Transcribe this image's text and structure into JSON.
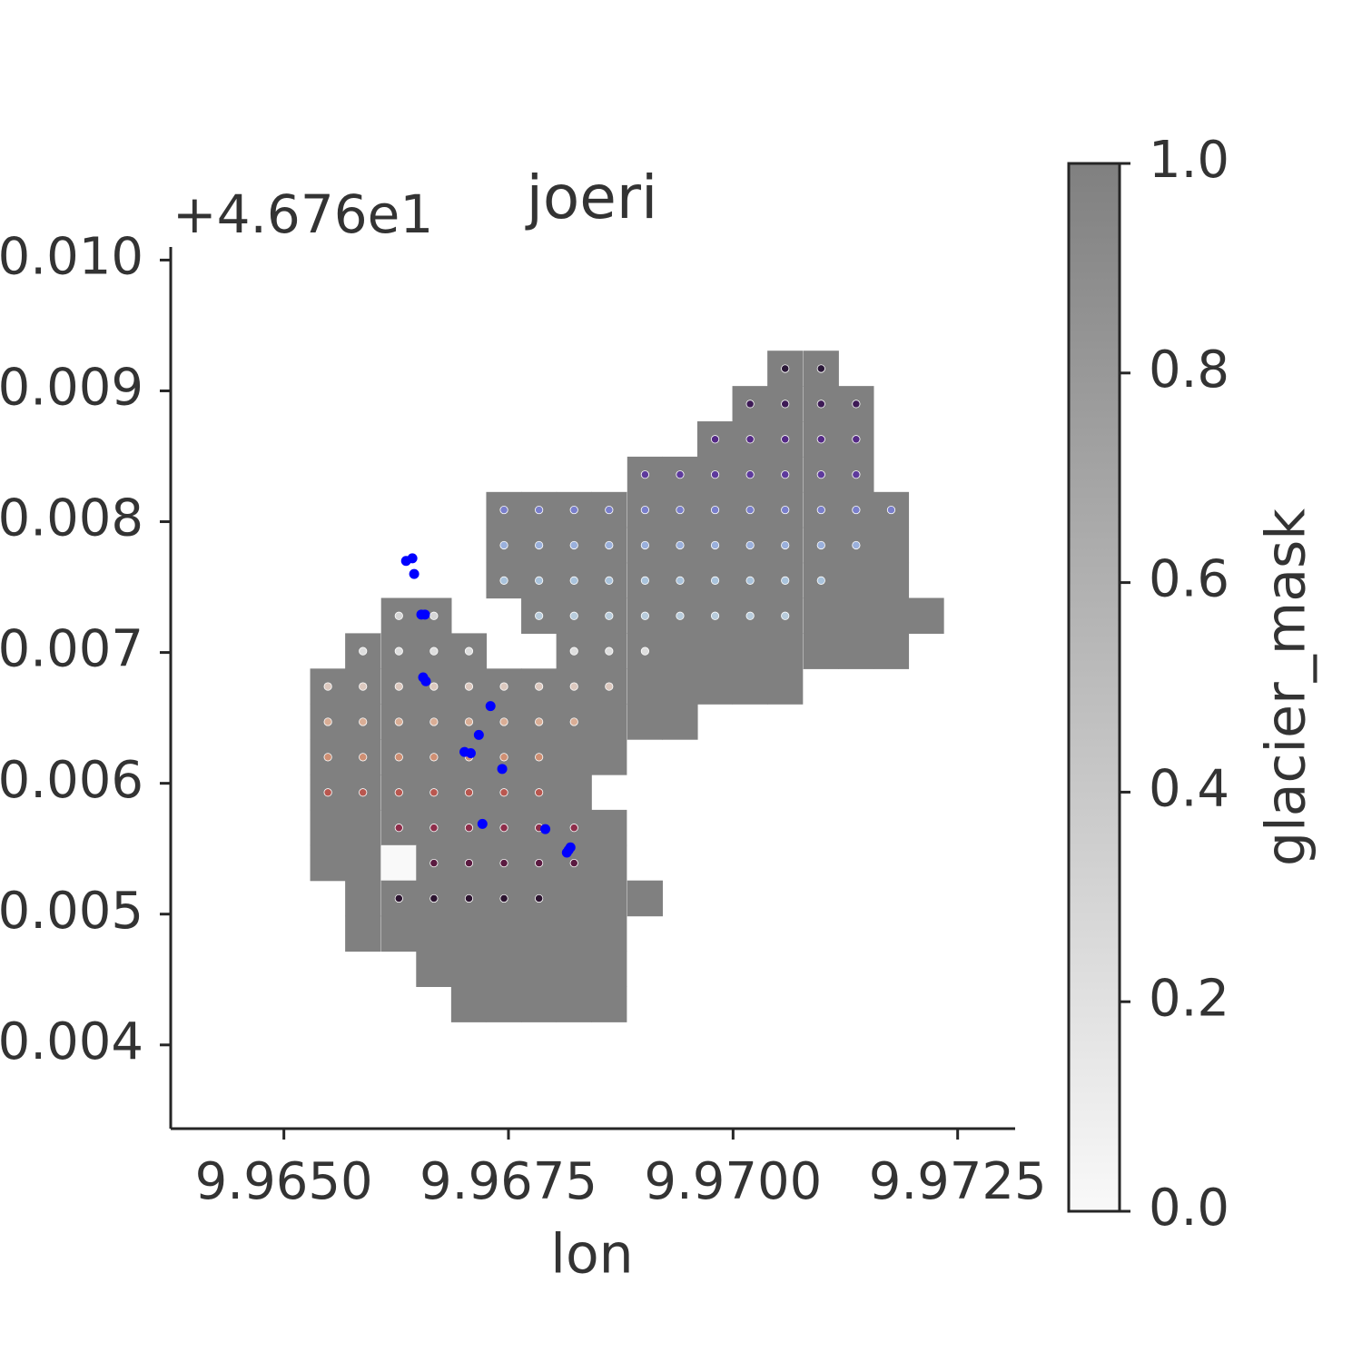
{
  "chart_data": {
    "type": "heatmap",
    "title": "joeri",
    "offset_text": "+4.676e1",
    "xlabel": "lon",
    "xlim": [
      9.96374,
      9.97314
    ],
    "ylim": [
      0.00336,
      0.0101
    ],
    "xticks": [
      {
        "value": 9.965,
        "label": "9.9650"
      },
      9.9675,
      {
        "value": 9.97,
        "label": "9.9700"
      },
      9.9725
    ],
    "yticks": [
      0.004,
      0.005,
      0.006,
      0.007,
      0.008,
      0.009,
      {
        "value": 0.01,
        "label": "0.010"
      }
    ],
    "colorbar": {
      "label": "glacier_mask",
      "lim": [
        0,
        1
      ],
      "ticks": [
        {
          "value": 0,
          "label": "0.0"
        },
        0.2,
        0.4,
        0.6,
        0.8,
        {
          "value": 1,
          "label": "1.0"
        }
      ],
      "colors": [
        "#f9f9f9",
        "#808080"
      ]
    },
    "mask": {
      "lon": [
        9.96549,
        9.96588,
        9.96628,
        9.96667,
        9.96706,
        9.96745,
        9.96784,
        9.96823,
        9.96862,
        9.96902,
        9.96941,
        9.9698,
        9.97019,
        9.97058,
        9.97098,
        9.97137,
        9.97176,
        9.97215
      ],
      "lat": [
        0.00917,
        0.0089,
        0.00863,
        0.00836,
        0.00809,
        0.00782,
        0.00755,
        0.00728,
        0.00701,
        0.00674,
        0.00647,
        0.0062,
        0.00593,
        0.00566,
        0.00539,
        0.00512,
        0.00485,
        0.00458,
        0.00431
      ],
      "values": [
        [
          null,
          null,
          null,
          null,
          null,
          null,
          null,
          null,
          null,
          null,
          null,
          null,
          null,
          1,
          1,
          null,
          null,
          null
        ],
        [
          null,
          null,
          null,
          null,
          null,
          null,
          null,
          null,
          null,
          null,
          null,
          null,
          1,
          1,
          1,
          1,
          null,
          null
        ],
        [
          null,
          null,
          null,
          null,
          null,
          null,
          null,
          null,
          null,
          null,
          null,
          1,
          1,
          1,
          1,
          1,
          null,
          null
        ],
        [
          null,
          null,
          null,
          null,
          null,
          null,
          null,
          null,
          null,
          1,
          1,
          1,
          1,
          1,
          1,
          1,
          null,
          null
        ],
        [
          null,
          null,
          null,
          null,
          null,
          1,
          1,
          1,
          1,
          1,
          1,
          1,
          1,
          1,
          1,
          1,
          1,
          null
        ],
        [
          null,
          null,
          null,
          null,
          null,
          1,
          1,
          1,
          1,
          1,
          1,
          1,
          1,
          1,
          1,
          1,
          1,
          null
        ],
        [
          null,
          null,
          null,
          null,
          null,
          1,
          1,
          1,
          1,
          1,
          1,
          1,
          1,
          1,
          1,
          1,
          1,
          null
        ],
        [
          null,
          null,
          1,
          1,
          null,
          null,
          1,
          1,
          1,
          1,
          1,
          1,
          1,
          1,
          1,
          1,
          1,
          1
        ],
        [
          null,
          1,
          1,
          1,
          1,
          null,
          null,
          1,
          1,
          1,
          1,
          1,
          1,
          1,
          1,
          1,
          1,
          null
        ],
        [
          1,
          1,
          1,
          1,
          1,
          1,
          1,
          1,
          1,
          1,
          1,
          1,
          1,
          1,
          null,
          null,
          null,
          null
        ],
        [
          1,
          1,
          1,
          1,
          1,
          1,
          1,
          1,
          1,
          1,
          1,
          null,
          null,
          null,
          null,
          null,
          null,
          null
        ],
        [
          1,
          1,
          1,
          1,
          1,
          1,
          1,
          1,
          1,
          null,
          null,
          null,
          null,
          null,
          null,
          null,
          null,
          null
        ],
        [
          1,
          1,
          1,
          1,
          1,
          1,
          1,
          1,
          null,
          null,
          null,
          null,
          null,
          null,
          null,
          null,
          null,
          null
        ],
        [
          1,
          1,
          1,
          1,
          1,
          1,
          1,
          1,
          1,
          null,
          null,
          null,
          null,
          null,
          null,
          null,
          null,
          null
        ],
        [
          1,
          1,
          0,
          1,
          1,
          1,
          1,
          1,
          1,
          null,
          null,
          null,
          null,
          null,
          null,
          null,
          null,
          null
        ],
        [
          null,
          1,
          1,
          1,
          1,
          1,
          1,
          1,
          1,
          1,
          null,
          null,
          null,
          null,
          null,
          null,
          null,
          null
        ],
        [
          null,
          1,
          1,
          1,
          1,
          1,
          1,
          1,
          1,
          null,
          null,
          null,
          null,
          null,
          null,
          null,
          null,
          null
        ],
        [
          null,
          null,
          null,
          1,
          1,
          1,
          1,
          1,
          1,
          null,
          null,
          null,
          null,
          null,
          null,
          null,
          null,
          null
        ],
        [
          null,
          null,
          null,
          null,
          1,
          1,
          1,
          1,
          1,
          null,
          null,
          null,
          null,
          null,
          null,
          null,
          null,
          null
        ]
      ]
    },
    "points": [
      {
        "color": "#2b1838",
        "lat": 0.00917,
        "lon": [
          9.97058,
          9.97098
        ]
      },
      {
        "color": "#3d1a55",
        "lat": 0.0089,
        "lon": [
          9.97019,
          9.97058,
          9.97098,
          9.97137
        ]
      },
      {
        "color": "#552a86",
        "lat": 0.00863,
        "lon": [
          9.9698,
          9.97019,
          9.97058,
          9.97098,
          9.97137
        ]
      },
      {
        "color": "#5e3a9c",
        "lat": 0.00836,
        "lon": [
          9.96902,
          9.96941,
          9.9698,
          9.97019,
          9.97058,
          9.97098,
          9.97137
        ]
      },
      {
        "color": "#7a7fcc",
        "lat": 0.00809,
        "lon": [
          9.96745,
          9.96784,
          9.96823,
          9.96862,
          9.96902,
          9.96941,
          9.9698,
          9.97019,
          9.97058,
          9.97098,
          9.97137,
          9.97176
        ]
      },
      {
        "color": "#9ab0dc",
        "lat": 0.00782,
        "lon": [
          9.96745,
          9.96784,
          9.96823,
          9.96862,
          9.96902,
          9.96941,
          9.9698,
          9.97019,
          9.97058,
          9.97098,
          9.97137
        ]
      },
      {
        "color": "#a9c3dc",
        "lat": 0.00755,
        "lon": [
          9.96745,
          9.96784,
          9.96823,
          9.96862,
          9.96902,
          9.96941,
          9.9698,
          9.97019,
          9.97058,
          9.97098
        ]
      },
      {
        "color": "#d6d6d6",
        "lat": 0.00728,
        "lon": [
          9.96628,
          9.96667
        ]
      },
      {
        "color": "#b8ccdc",
        "lat": 0.00728,
        "lon": [
          9.96784,
          9.96823,
          9.96862,
          9.96902,
          9.96941,
          9.9698,
          9.97019,
          9.97058
        ]
      },
      {
        "color": "#dedede",
        "lat": 0.00701,
        "lon": [
          9.96588,
          9.96628,
          9.96667,
          9.96706,
          9.96823,
          9.96862,
          9.96902
        ]
      },
      {
        "color": "#dcc8be",
        "lat": 0.00674,
        "lon": [
          9.96549,
          9.96588,
          9.96628,
          9.96667,
          9.96706,
          9.96745,
          9.96784,
          9.96823,
          9.96862
        ]
      },
      {
        "color": "#d9ad95",
        "lat": 0.00647,
        "lon": [
          9.96549,
          9.96588,
          9.96628,
          9.96667,
          9.96706,
          9.96745,
          9.96784,
          9.96823
        ]
      },
      {
        "color": "#cf8f73",
        "lat": 0.0062,
        "lon": [
          9.96549,
          9.96588,
          9.96628,
          9.96667,
          9.96706,
          9.96745,
          9.96784
        ]
      },
      {
        "color": "#b9574f",
        "lat": 0.00593,
        "lon": [
          9.96549,
          9.96588,
          9.96628,
          9.96667,
          9.96706,
          9.96745,
          9.96784
        ]
      },
      {
        "color": "#8e2d4a",
        "lat": 0.00566,
        "lon": [
          9.96628,
          9.96667,
          9.96706,
          9.96745,
          9.96784,
          9.96823
        ]
      },
      {
        "color": "#5a1a40",
        "lat": 0.00539,
        "lon": [
          9.96667,
          9.96706,
          9.96745,
          9.96784,
          9.96823
        ]
      },
      {
        "color": "#2c1430",
        "lat": 0.00512,
        "lon": [
          9.96628,
          9.96667,
          9.96706,
          9.96745,
          9.96784
        ]
      }
    ],
    "observations": {
      "color": "#0000ff",
      "lon": [
        9.96636,
        9.96643,
        9.96645,
        9.96653,
        9.96657,
        9.96655,
        9.96658,
        9.9673,
        9.96717,
        9.96701,
        9.96708,
        9.96743,
        9.96721,
        9.96791,
        9.96819,
        9.96815,
        9.96817
      ],
      "lat": [
        0.0077,
        0.00772,
        0.0076,
        0.00729,
        0.00729,
        0.00681,
        0.00678,
        0.00659,
        0.00637,
        0.00624,
        0.00623,
        0.00611,
        0.00569,
        0.00565,
        0.00551,
        0.00547,
        0.00549
      ]
    }
  }
}
